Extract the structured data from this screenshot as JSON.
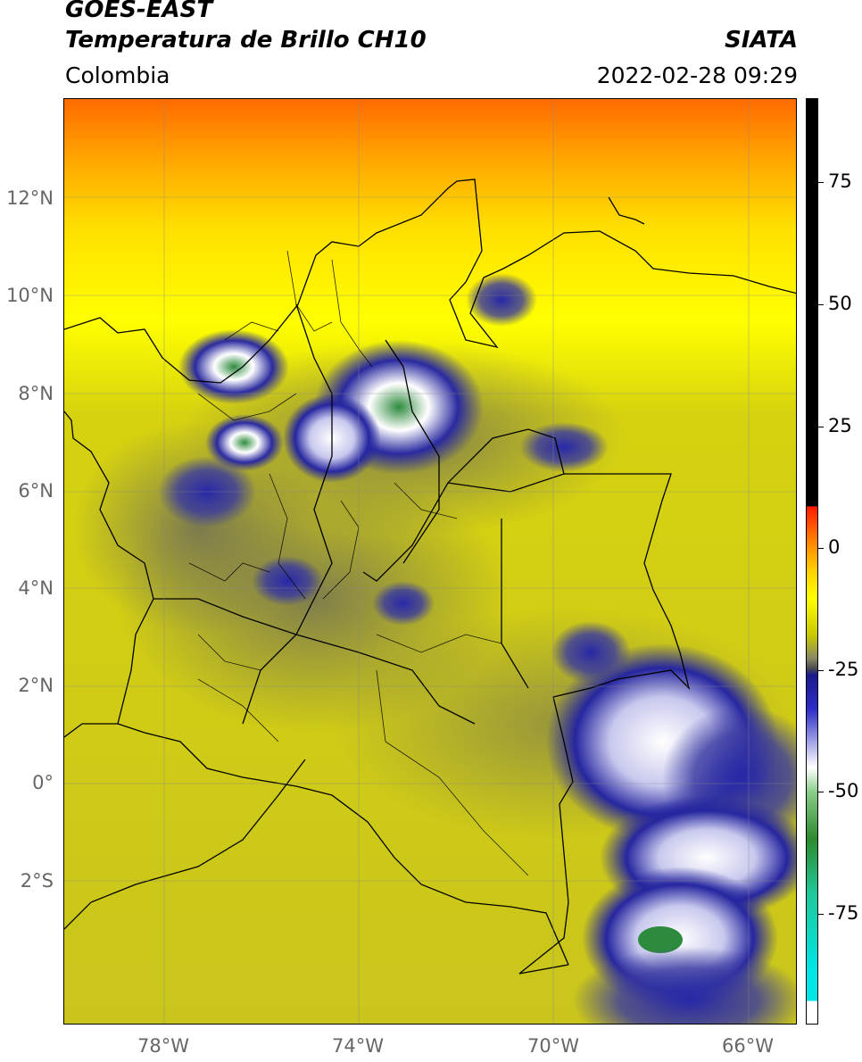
{
  "header": {
    "satellite": "GOES-EAST",
    "product": "Temperatura de Brillo CH10",
    "brand": "SIATA",
    "region": "Colombia",
    "timestamp": "2022-02-28 09:29"
  },
  "map": {
    "lat_labels": [
      "12°N",
      "10°N",
      "8°N",
      "6°N",
      "4°N",
      "2°N",
      "0°",
      "2°S"
    ],
    "lon_labels": [
      "78°W",
      "74°W",
      "70°W",
      "66°W"
    ]
  },
  "colorbar": {
    "ticks": [
      "75",
      "50",
      "25",
      "0",
      "-25",
      "-50",
      "-75"
    ],
    "colors": {
      "top": "#000000",
      "warm": "#ff7a00",
      "yellow": "#ffff00",
      "olive": "#c8c800",
      "blue": "#1a1a8c",
      "white": "#ffffff",
      "green": "#2e8b2e",
      "cyan": "#00e5e5"
    }
  }
}
